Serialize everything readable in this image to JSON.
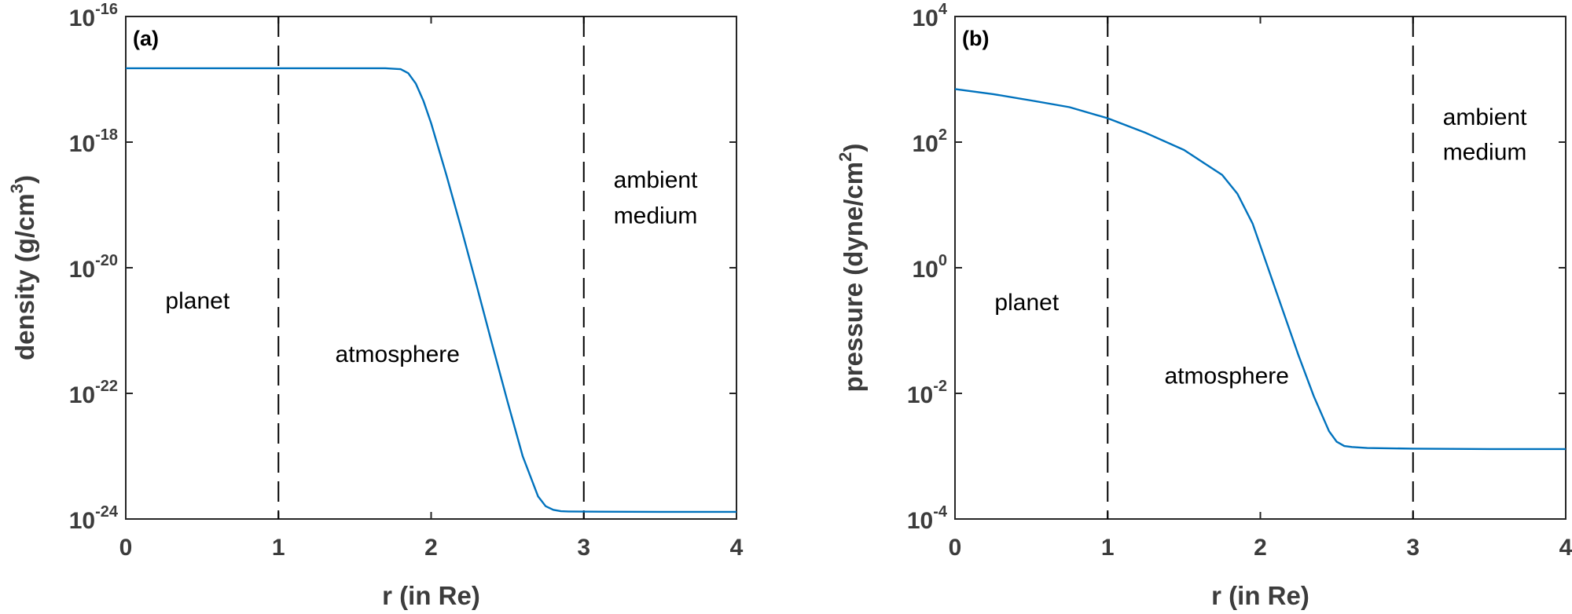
{
  "chart_data": [
    {
      "type": "line",
      "panel_label": "(a)",
      "xlabel": "r (in Re)",
      "ylabel": "density (g/cm",
      "ylabel_sup": "3",
      "ylabel_end": ")",
      "xlim": [
        0,
        4
      ],
      "ylim": [
        1e-24,
        1e-16
      ],
      "yscale": "log",
      "x_ticks": [
        "0",
        "1",
        "2",
        "3",
        "4"
      ],
      "y_ticks": [
        {
          "base": "10",
          "exp": "-24"
        },
        {
          "base": "10",
          "exp": "-22"
        },
        {
          "base": "10",
          "exp": "-20"
        },
        {
          "base": "10",
          "exp": "-18"
        },
        {
          "base": "10",
          "exp": "-16"
        }
      ],
      "vlines": [
        1,
        3
      ],
      "region_labels": [
        {
          "text": "planet",
          "x": 0.47,
          "y": 3e-21
        },
        {
          "text": "atmosphere",
          "x": 1.78,
          "y": 4.2e-22
        },
        {
          "text": "ambient",
          "x": 3.47,
          "y": 2.5e-19
        },
        {
          "text": "medium",
          "x": 3.47,
          "y": 6.8e-20
        }
      ],
      "series": [
        {
          "color": "#0072bd",
          "x": [
            0,
            1,
            1.7,
            1.8,
            1.85,
            1.9,
            1.95,
            2.0,
            2.1,
            2.2,
            2.3,
            2.4,
            2.5,
            2.6,
            2.7,
            2.75,
            2.8,
            2.85,
            2.9,
            3.0,
            3.5,
            4.0
          ],
          "y": [
            1.5e-17,
            1.5e-17,
            1.5e-17,
            1.45e-17,
            1.25e-17,
            8.5e-18,
            4.5e-18,
            2e-18,
            3e-19,
            4e-20,
            5e-21,
            6e-22,
            7.5e-23,
            1e-23,
            2.3e-24,
            1.6e-24,
            1.4e-24,
            1.33e-24,
            1.32e-24,
            1.31e-24,
            1.3e-24,
            1.3e-24
          ]
        }
      ]
    },
    {
      "type": "line",
      "panel_label": "(b)",
      "xlabel": "r (in Re)",
      "ylabel": "pressure (dyne/cm",
      "ylabel_sup": "2",
      "ylabel_end": ")",
      "xlim": [
        0,
        4
      ],
      "ylim": [
        0.0001,
        10000.0
      ],
      "yscale": "log",
      "x_ticks": [
        "0",
        "1",
        "2",
        "3",
        "4"
      ],
      "y_ticks": [
        {
          "base": "10",
          "exp": "-4"
        },
        {
          "base": "10",
          "exp": "-2"
        },
        {
          "base": "10",
          "exp": "0"
        },
        {
          "base": "10",
          "exp": "2"
        },
        {
          "base": "10",
          "exp": "4"
        }
      ],
      "vlines": [
        1,
        3
      ],
      "region_labels": [
        {
          "text": "planet",
          "x": 0.47,
          "y": 0.28
        },
        {
          "text": "atmosphere",
          "x": 1.78,
          "y": 0.019
        },
        {
          "text": "ambient",
          "x": 3.47,
          "y": 250
        },
        {
          "text": "medium",
          "x": 3.47,
          "y": 70
        }
      ],
      "series": [
        {
          "color": "#0072bd",
          "x": [
            0,
            0.25,
            0.5,
            0.75,
            1.0,
            1.25,
            1.5,
            1.75,
            1.85,
            1.95,
            2.05,
            2.15,
            2.25,
            2.35,
            2.45,
            2.5,
            2.55,
            2.6,
            2.7,
            3.0,
            3.5,
            4.0
          ],
          "y": [
            700,
            580,
            460,
            360,
            240,
            140,
            75,
            30,
            15,
            5,
            1.0,
            0.2,
            0.04,
            0.009,
            0.0025,
            0.0017,
            0.00145,
            0.0014,
            0.00135,
            0.00132,
            0.0013,
            0.0013
          ]
        }
      ]
    }
  ]
}
